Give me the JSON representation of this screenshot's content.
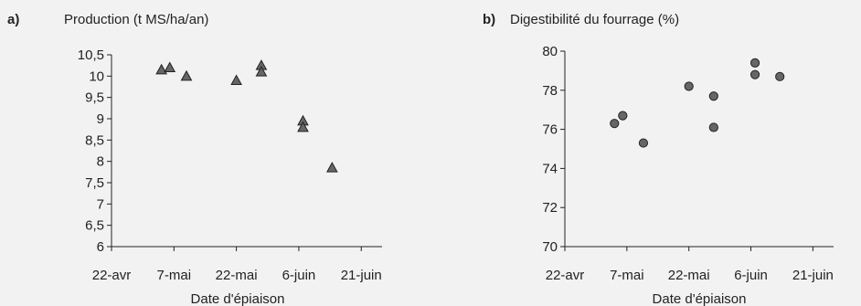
{
  "chart_data": [
    {
      "type": "scatter",
      "panel_label": "a)",
      "title": "Production (t MS/ha/an)",
      "xlabel": "Date d'épiaison",
      "ylabel": "",
      "xlim": [
        "2000-04-22",
        "2000-06-26"
      ],
      "ylim": [
        6,
        10.5
      ],
      "xticks": [
        {
          "date": "2000-04-22",
          "label": "22-avr"
        },
        {
          "date": "2000-05-07",
          "label": "7-mai"
        },
        {
          "date": "2000-05-22",
          "label": "22-mai"
        },
        {
          "date": "2000-06-06",
          "label": "6-juin"
        },
        {
          "date": "2000-06-21",
          "label": "21-juin"
        }
      ],
      "yticks": [
        {
          "value": 6,
          "label": "6"
        },
        {
          "value": 6.5,
          "label": "6,5"
        },
        {
          "value": 7,
          "label": "7"
        },
        {
          "value": 7.5,
          "label": "7,5"
        },
        {
          "value": 8,
          "label": "8"
        },
        {
          "value": 8.5,
          "label": "8,5"
        },
        {
          "value": 9,
          "label": "9"
        },
        {
          "value": 9.5,
          "label": "9,5"
        },
        {
          "value": 10,
          "label": "10"
        },
        {
          "value": 10.5,
          "label": "10,5"
        }
      ],
      "marker": "triangle",
      "color": "#666666",
      "grid": false,
      "points": [
        {
          "x": "2000-05-04",
          "y": 10.15
        },
        {
          "x": "2000-05-06",
          "y": 10.2
        },
        {
          "x": "2000-05-10",
          "y": 10.0
        },
        {
          "x": "2000-05-22",
          "y": 9.9
        },
        {
          "x": "2000-05-28",
          "y": 10.25
        },
        {
          "x": "2000-05-28",
          "y": 10.1
        },
        {
          "x": "2000-06-07",
          "y": 8.95
        },
        {
          "x": "2000-06-07",
          "y": 8.8
        },
        {
          "x": "2000-06-14",
          "y": 7.85
        }
      ]
    },
    {
      "type": "scatter",
      "panel_label": "b)",
      "title": "Digestibilité du fourrage (%)",
      "xlabel": "Date d'épiaison",
      "ylabel": "",
      "xlim": [
        "2000-04-22",
        "2000-06-26"
      ],
      "ylim": [
        70,
        80
      ],
      "xticks": [
        {
          "date": "2000-04-22",
          "label": "22-avr"
        },
        {
          "date": "2000-05-07",
          "label": "7-mai"
        },
        {
          "date": "2000-05-22",
          "label": "22-mai"
        },
        {
          "date": "2000-06-06",
          "label": "6-juin"
        },
        {
          "date": "2000-06-21",
          "label": "21-juin"
        }
      ],
      "yticks": [
        {
          "value": 70,
          "label": "70"
        },
        {
          "value": 72,
          "label": "72"
        },
        {
          "value": 74,
          "label": "74"
        },
        {
          "value": 76,
          "label": "76"
        },
        {
          "value": 78,
          "label": "78"
        },
        {
          "value": 80,
          "label": "80"
        }
      ],
      "marker": "circle",
      "color": "#666666",
      "grid": false,
      "points": [
        {
          "x": "2000-05-04",
          "y": 76.3
        },
        {
          "x": "2000-05-06",
          "y": 76.7
        },
        {
          "x": "2000-05-11",
          "y": 75.3
        },
        {
          "x": "2000-05-22",
          "y": 78.2
        },
        {
          "x": "2000-05-28",
          "y": 77.7
        },
        {
          "x": "2000-05-28",
          "y": 76.1
        },
        {
          "x": "2000-06-07",
          "y": 79.4
        },
        {
          "x": "2000-06-07",
          "y": 78.8
        },
        {
          "x": "2000-06-13",
          "y": 78.7
        }
      ]
    }
  ]
}
